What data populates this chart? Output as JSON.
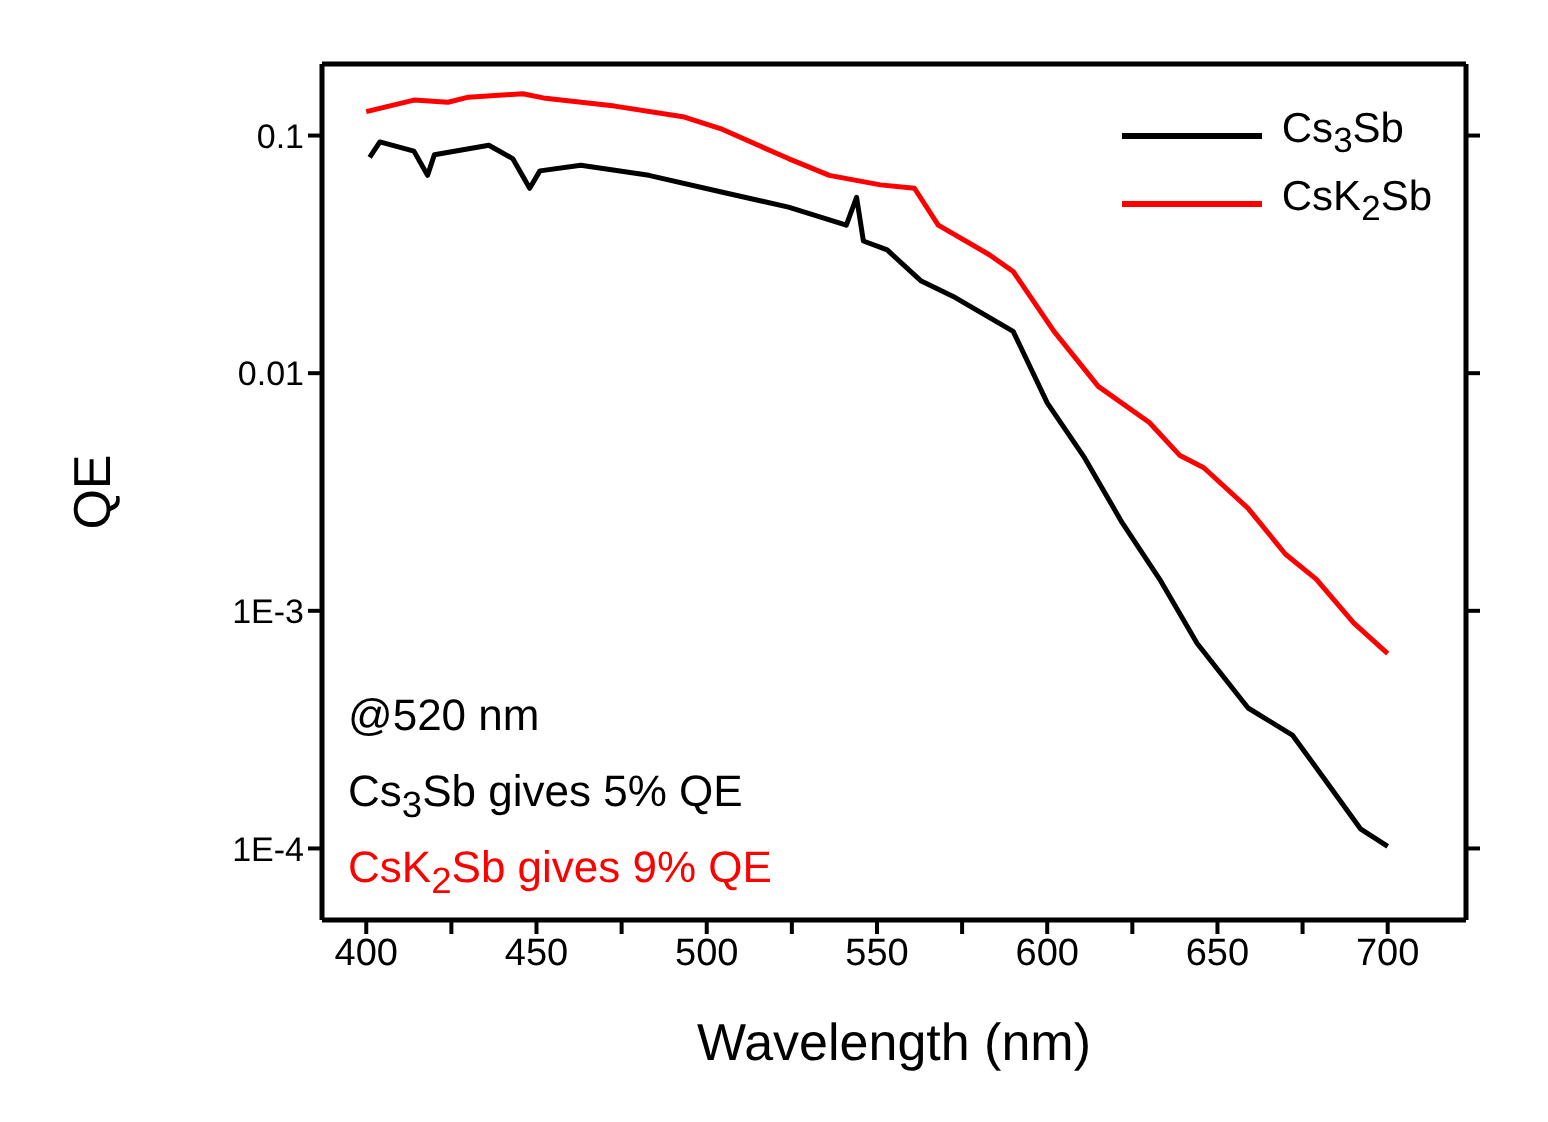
{
  "chart_data": {
    "type": "line",
    "xlabel": "Wavelength (nm)",
    "ylabel": "QE",
    "log": "y",
    "grid": false,
    "legend": "top right",
    "marker": "none",
    "line_style": "solid",
    "xlim": [
      387,
      723
    ],
    "ylim": [
      5e-05,
      0.2
    ],
    "xticks": [
      400,
      {
        "value": 425,
        "label": null
      },
      450,
      {
        "value": 475,
        "label": null
      },
      500,
      {
        "value": 525,
        "label": null
      },
      550,
      {
        "value": 575,
        "label": null
      },
      600,
      {
        "value": 625,
        "label": null
      },
      650,
      {
        "value": 675,
        "label": null
      },
      700
    ],
    "yticks": [
      0.1,
      0.01,
      {
        "value": 0.001,
        "label": "1E-3"
      },
      {
        "value": 0.0001,
        "label": "1E-4"
      }
    ],
    "series": [
      {
        "name": "Cs$_{3}$Sb",
        "color": "#000000",
        "x": [
          401,
          404,
          414,
          418,
          420,
          436,
          443,
          448,
          451,
          463,
          483,
          504,
          524,
          541,
          544,
          546,
          553,
          563,
          573,
          590,
          600,
          611,
          622,
          633,
          644,
          659,
          672,
          681,
          692,
          700
        ],
        "values": [
          0.081,
          0.094,
          0.086,
          0.068,
          0.083,
          0.091,
          0.08,
          0.06,
          0.071,
          0.075,
          0.068,
          0.058,
          0.05,
          0.042,
          0.055,
          0.036,
          0.033,
          0.0244,
          0.0208,
          0.015,
          0.0075,
          0.0044,
          0.00235,
          0.00136,
          0.00073,
          0.00039,
          0.0003,
          0.0002,
          0.000121,
          0.000102
        ]
      },
      {
        "name": "CsK$_{2}$Sb",
        "color": "#ff0000",
        "x": [
          400,
          414,
          424,
          430,
          446,
          452,
          473,
          493,
          504,
          524,
          536,
          551,
          561,
          568,
          583,
          590,
          602,
          615,
          630,
          639,
          646,
          659,
          670,
          679,
          690,
          700
        ],
        "values": [
          0.126,
          0.141,
          0.138,
          0.145,
          0.15,
          0.144,
          0.133,
          0.12,
          0.107,
          0.08,
          0.068,
          0.062,
          0.06,
          0.042,
          0.0315,
          0.0268,
          0.015,
          0.0088,
          0.0062,
          0.0045,
          0.004,
          0.0027,
          0.00173,
          0.00136,
          0.00089,
          0.00066
        ]
      }
    ],
    "annotations": [
      "@520 nm",
      "Cs$_{3}$Sb gives 5% QE",
      "CsK$_{2}$Sb gives 9% QE"
    ]
  }
}
